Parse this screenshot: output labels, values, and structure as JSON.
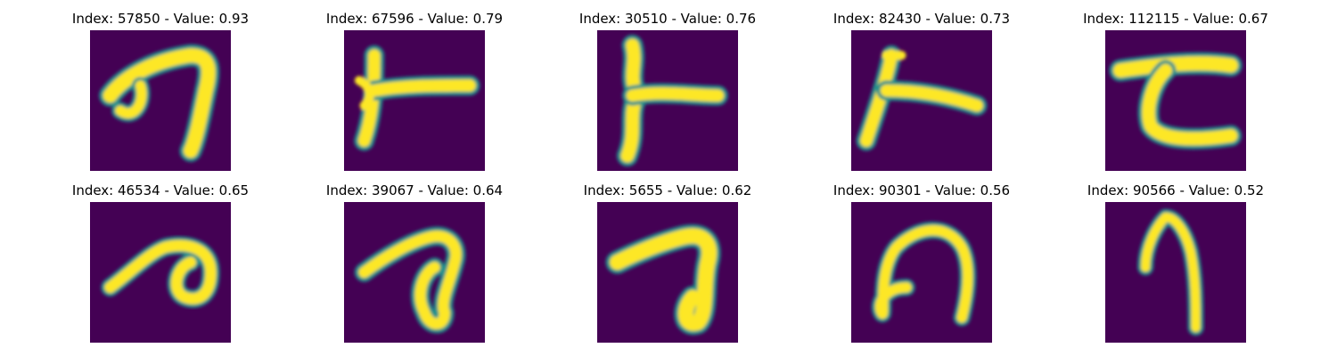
{
  "colormap": {
    "low": "#440154",
    "mid": "#21918c",
    "high": "#fde725"
  },
  "panels": [
    {
      "title": "Index: 57850 - Value: 0.93",
      "glyph": "stroke-hook-seven"
    },
    {
      "title": "Index: 67596 - Value: 0.79",
      "glyph": "stroke-t-right"
    },
    {
      "title": "Index: 30510 - Value: 0.76",
      "glyph": "stroke-t-right-wavy"
    },
    {
      "title": "Index: 82430 - Value: 0.73",
      "glyph": "stroke-t-right-slanted"
    },
    {
      "title": "Index: 112115 - Value: 0.67",
      "glyph": "stroke-tau"
    },
    {
      "title": "Index: 46534 - Value: 0.65",
      "glyph": "stroke-loop-right"
    },
    {
      "title": "Index: 39067 - Value: 0.64",
      "glyph": "stroke-loop-right"
    },
    {
      "title": "Index: 5655 - Value: 0.62",
      "glyph": "stroke-loop-right-thick"
    },
    {
      "title": "Index: 90301 - Value: 0.56",
      "glyph": "stroke-open-circle"
    },
    {
      "title": "Index: 90566 - Value: 0.52",
      "glyph": "stroke-hook-seven-narrow"
    }
  ]
}
